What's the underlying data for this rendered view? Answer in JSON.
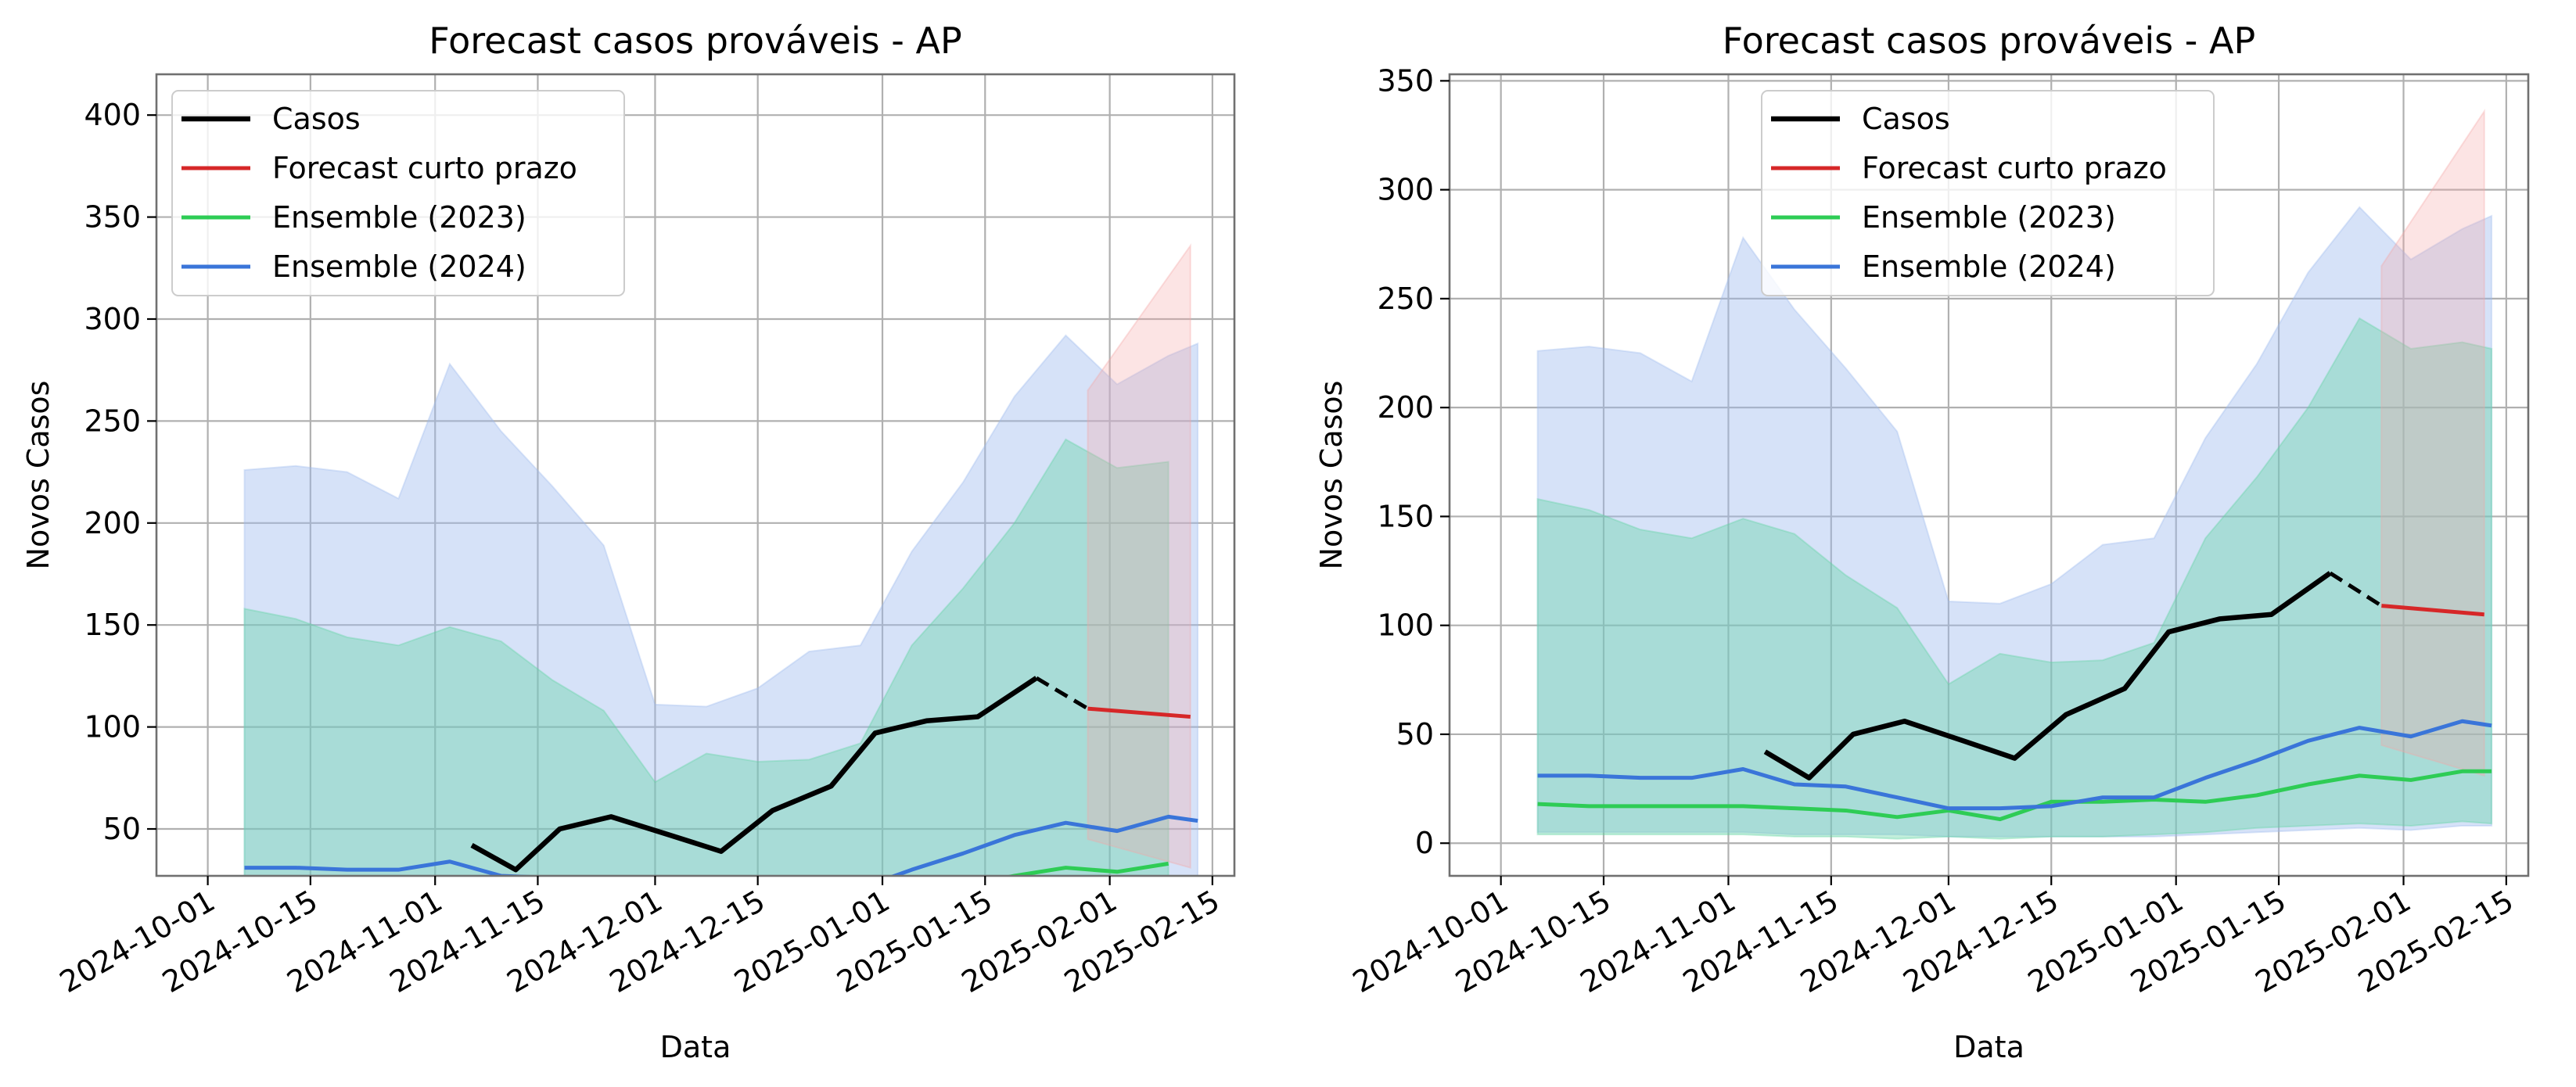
{
  "colors": {
    "cases": "#000000",
    "short_term": "#d62728",
    "ens2023": "#2ecc55",
    "ens2024": "#3a75d9",
    "band2023": "#5ed3a0",
    "band2024": "#9db9ee",
    "band_short": "#f4a6a6",
    "grid": "#b0b0b0"
  },
  "chart_data": [
    {
      "type": "line",
      "title": "Forecast casos prováveis - AP",
      "xlabel": "Data",
      "ylabel": "Novos Casos",
      "xlim": [
        "2024-09-24",
        "2025-02-18"
      ],
      "ylim": [
        27,
        420
      ],
      "yticks": [
        50,
        100,
        150,
        200,
        250,
        300,
        350,
        400
      ],
      "xticks": [
        "2024-10-01",
        "2024-10-15",
        "2024-11-01",
        "2024-11-15",
        "2024-12-01",
        "2024-12-15",
        "2025-01-01",
        "2025-01-15",
        "2025-02-01",
        "2025-02-15"
      ],
      "grid": true,
      "legend_position": "upper left",
      "legend": [
        "Casos",
        "Forecast curto prazo",
        "Ensemble (2023)",
        "Ensemble (2024)"
      ],
      "cases": {
        "name": "Casos",
        "x": [
          "2024-11-06",
          "2024-11-12",
          "2024-11-18",
          "2024-11-25",
          "2024-12-03",
          "2024-12-10",
          "2024-12-17",
          "2024-12-25",
          "2024-12-31",
          "2025-01-07",
          "2025-01-14",
          "2025-01-22"
        ],
        "y": [
          42,
          30,
          50,
          56,
          47,
          39,
          59,
          71,
          97,
          103,
          105,
          124
        ]
      },
      "cases_dashed": {
        "x": [
          "2025-01-22",
          "2025-01-29"
        ],
        "y": [
          124,
          109
        ]
      },
      "short_term": {
        "name": "Forecast curto prazo",
        "x": [
          "2025-01-29",
          "2025-02-12"
        ],
        "y": [
          109,
          105
        ],
        "lower": [
          45,
          31
        ],
        "upper": [
          265,
          336
        ]
      },
      "ensemble_2023": {
        "name": "Ensemble (2023)",
        "x": [
          "2024-10-06",
          "2024-10-13",
          "2024-10-20",
          "2024-10-27",
          "2024-11-03",
          "2024-11-10",
          "2024-11-17",
          "2024-11-24",
          "2024-12-01",
          "2024-12-08",
          "2024-12-15",
          "2024-12-22",
          "2024-12-29",
          "2025-01-05",
          "2025-01-12",
          "2025-01-19",
          "2025-01-26",
          "2025-02-02",
          "2025-02-09"
        ],
        "y": [
          18,
          17,
          17,
          17,
          16,
          15,
          14,
          12,
          15,
          11,
          18,
          18,
          20,
          19,
          22,
          27,
          31,
          29,
          33
        ],
        "lower": [
          4,
          4,
          4,
          4,
          4,
          3,
          3,
          2,
          3,
          2,
          3,
          3,
          4,
          5,
          7,
          8,
          9,
          8,
          10
        ],
        "upper": [
          158,
          153,
          144,
          140,
          149,
          142,
          123,
          108,
          73,
          87,
          83,
          84,
          92,
          140,
          168,
          200,
          241,
          227,
          230
        ]
      },
      "ensemble_2024": {
        "name": "Ensemble (2024)",
        "x": [
          "2024-10-06",
          "2024-10-13",
          "2024-10-20",
          "2024-10-27",
          "2024-11-03",
          "2024-11-10",
          "2024-11-17",
          "2024-11-24",
          "2024-12-01",
          "2024-12-08",
          "2024-12-15",
          "2024-12-22",
          "2024-12-29",
          "2025-01-05",
          "2025-01-12",
          "2025-01-19",
          "2025-01-26",
          "2025-02-02",
          "2025-02-09",
          "2025-02-13"
        ],
        "y": [
          31,
          31,
          30,
          30,
          34,
          27,
          26,
          21,
          16,
          16,
          17,
          21,
          21,
          30,
          38,
          47,
          53,
          49,
          56,
          54
        ],
        "lower": [
          5,
          5,
          5,
          5,
          5,
          4,
          4,
          4,
          3,
          3,
          3,
          3,
          3,
          4,
          5,
          6,
          7,
          6,
          8,
          8
        ],
        "upper": [
          226,
          228,
          225,
          212,
          278,
          245,
          218,
          189,
          111,
          110,
          119,
          137,
          140,
          186,
          220,
          262,
          292,
          268,
          282,
          288
        ]
      }
    },
    {
      "type": "line",
      "title": "Forecast casos prováveis - AP",
      "xlabel": "Data",
      "ylabel": "Novos Casos",
      "xlim": [
        "2024-09-24",
        "2025-02-18"
      ],
      "ylim": [
        -15,
        353
      ],
      "yticks": [
        0,
        50,
        100,
        150,
        200,
        250,
        300,
        350
      ],
      "xticks": [
        "2024-10-01",
        "2024-10-15",
        "2024-11-01",
        "2024-11-15",
        "2024-12-01",
        "2024-12-15",
        "2025-01-01",
        "2025-01-15",
        "2025-02-01",
        "2025-02-15"
      ],
      "grid": true,
      "legend_position": "upper center",
      "legend": [
        "Casos",
        "Forecast curto prazo",
        "Ensemble (2023)",
        "Ensemble (2024)"
      ],
      "cases": {
        "name": "Casos",
        "x": [
          "2024-11-06",
          "2024-11-12",
          "2024-11-18",
          "2024-11-25",
          "2024-12-03",
          "2024-12-10",
          "2024-12-17",
          "2024-12-25",
          "2024-12-31",
          "2025-01-07",
          "2025-01-14",
          "2025-01-22"
        ],
        "y": [
          42,
          30,
          50,
          56,
          47,
          39,
          59,
          71,
          97,
          103,
          105,
          124
        ]
      },
      "cases_dashed": {
        "x": [
          "2025-01-22",
          "2025-01-29"
        ],
        "y": [
          124,
          109
        ]
      },
      "short_term": {
        "name": "Forecast curto prazo",
        "x": [
          "2025-01-29",
          "2025-02-12"
        ],
        "y": [
          109,
          105
        ],
        "lower": [
          45,
          31
        ],
        "upper": [
          265,
          336
        ]
      },
      "ensemble_2023": {
        "name": "Ensemble (2023)",
        "x": [
          "2024-10-06",
          "2024-10-13",
          "2024-10-20",
          "2024-10-27",
          "2024-11-03",
          "2024-11-10",
          "2024-11-17",
          "2024-11-24",
          "2024-12-01",
          "2024-12-08",
          "2024-12-15",
          "2024-12-22",
          "2024-12-29",
          "2025-01-05",
          "2025-01-12",
          "2025-01-19",
          "2025-01-26",
          "2025-02-02",
          "2025-02-09",
          "2025-02-13"
        ],
        "y": [
          18,
          17,
          17,
          17,
          17,
          16,
          15,
          12,
          15,
          11,
          19,
          19,
          20,
          19,
          22,
          27,
          31,
          29,
          33,
          33
        ],
        "lower": [
          4,
          4,
          4,
          4,
          4,
          3,
          3,
          2,
          3,
          2,
          3,
          3,
          4,
          5,
          7,
          8,
          9,
          8,
          10,
          9
        ],
        "upper": [
          158,
          153,
          144,
          140,
          149,
          142,
          123,
          108,
          73,
          87,
          83,
          84,
          92,
          140,
          168,
          200,
          241,
          227,
          230,
          227
        ]
      },
      "ensemble_2024": {
        "name": "Ensemble (2024)",
        "x": [
          "2024-10-06",
          "2024-10-13",
          "2024-10-20",
          "2024-10-27",
          "2024-11-03",
          "2024-11-10",
          "2024-11-17",
          "2024-11-24",
          "2024-12-01",
          "2024-12-08",
          "2024-12-15",
          "2024-12-22",
          "2024-12-29",
          "2025-01-05",
          "2025-01-12",
          "2025-01-19",
          "2025-01-26",
          "2025-02-02",
          "2025-02-09",
          "2025-02-13"
        ],
        "y": [
          31,
          31,
          30,
          30,
          34,
          27,
          26,
          21,
          16,
          16,
          17,
          21,
          21,
          30,
          38,
          47,
          53,
          49,
          56,
          54
        ],
        "lower": [
          5,
          5,
          5,
          5,
          5,
          4,
          4,
          4,
          3,
          3,
          3,
          3,
          3,
          4,
          5,
          6,
          7,
          6,
          8,
          8
        ],
        "upper": [
          226,
          228,
          225,
          212,
          278,
          245,
          218,
          189,
          111,
          110,
          119,
          137,
          140,
          186,
          220,
          262,
          292,
          268,
          282,
          288
        ]
      }
    }
  ]
}
